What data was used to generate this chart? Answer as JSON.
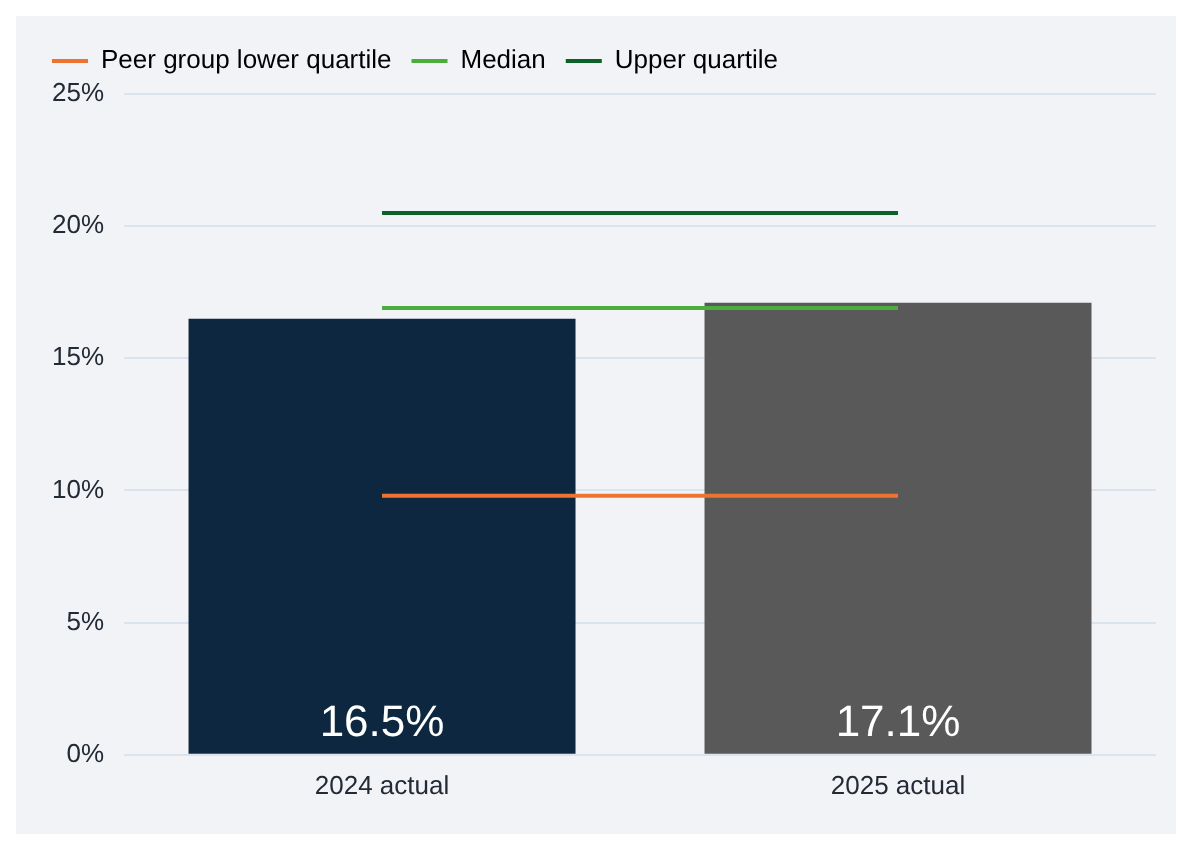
{
  "chart_data": {
    "type": "bar",
    "categories": [
      "2024 actual",
      "2025 actual"
    ],
    "series": [
      {
        "colors": [
          "#0e2740",
          "#595959"
        ],
        "values": [
          16.5,
          17.1
        ],
        "value_labels": [
          "16.5%",
          "17.1%"
        ]
      },
      {
        "type": "line",
        "name": "Peer group lower quartile",
        "color": "#ee7330",
        "values": [
          9.8,
          9.8
        ]
      },
      {
        "type": "line",
        "name": "Median",
        "color": "#4aad3c",
        "values": [
          16.9,
          16.9
        ]
      },
      {
        "type": "line",
        "name": "Upper quartile",
        "color": "#0b6127",
        "values": [
          20.5,
          20.5
        ]
      }
    ],
    "ylim": [
      0,
      25
    ],
    "yticks": [
      {
        "value": 0,
        "label": "0%"
      },
      {
        "value": 5,
        "label": "5%"
      },
      {
        "value": 10,
        "label": "10%"
      },
      {
        "value": 15,
        "label": "15%"
      },
      {
        "value": 20,
        "label": "20%"
      },
      {
        "value": 25,
        "label": "25%"
      }
    ],
    "grid": "y",
    "legend": "top",
    "marker": "none"
  }
}
